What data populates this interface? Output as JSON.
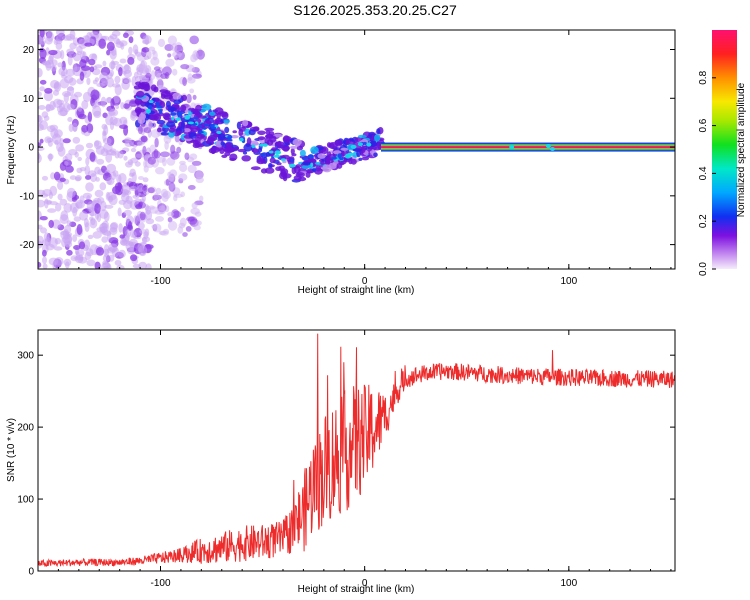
{
  "title": "S126.2025.353.20.25.C27",
  "colors": {
    "snr_line": "#ee2b2b",
    "carrier": "#e8175d",
    "frame": "#000000"
  },
  "chart_data": [
    {
      "type": "heatmap",
      "name": "spectrogram",
      "xlabel": "Height of straight line (km)",
      "ylabel": "Frequency (Hz)",
      "xlim": [
        -160,
        152
      ],
      "ylim": [
        -25,
        24
      ],
      "x_ticks": [
        -100,
        0,
        100
      ],
      "y_ticks": [
        -20,
        -10,
        0,
        10,
        20
      ],
      "carrier_frequency": 0,
      "carrier_start": 8,
      "colorbar": {
        "label": "Normalized spectral amplitude",
        "range": [
          0,
          1
        ],
        "ticks": [
          "0.0",
          "0.2",
          "0.4",
          "0.6",
          "0.8"
        ]
      }
    },
    {
      "type": "line",
      "name": "snr",
      "xlabel": "Height of straight line (km)",
      "ylabel": "SNR (10 * v/v)",
      "xlim": [
        -160,
        152
      ],
      "ylim": [
        0,
        335
      ],
      "x_ticks": [
        -100,
        0,
        100
      ],
      "y_ticks": [
        0,
        100,
        200,
        300
      ],
      "series": [
        {
          "name": "SNR",
          "x": [
            -160,
            -140,
            -120,
            -110,
            -100,
            -90,
            -80,
            -70,
            -60,
            -50,
            -40,
            -35,
            -30,
            -25,
            -20,
            -15,
            -10,
            -5,
            0,
            5,
            10,
            15,
            20,
            30,
            40,
            50,
            60,
            70,
            80,
            90,
            100,
            110,
            120,
            130,
            140,
            152
          ],
          "y": [
            10,
            12,
            12,
            14,
            18,
            22,
            28,
            32,
            38,
            40,
            45,
            60,
            80,
            120,
            140,
            155,
            165,
            175,
            185,
            200,
            215,
            245,
            268,
            275,
            278,
            276,
            274,
            272,
            271,
            270,
            269,
            268,
            268,
            267,
            267,
            266
          ],
          "noise": [
            5,
            5,
            5,
            6,
            8,
            10,
            18,
            22,
            25,
            25,
            25,
            35,
            55,
            70,
            80,
            85,
            85,
            85,
            75,
            60,
            35,
            20,
            14,
            12,
            12,
            12,
            12,
            12,
            12,
            12,
            12,
            12,
            12,
            12,
            12,
            12
          ]
        }
      ],
      "peaks": [
        {
          "x": -23,
          "y": 330
        },
        {
          "x": -4,
          "y": 311
        },
        {
          "x": 92,
          "y": 307
        }
      ]
    }
  ]
}
